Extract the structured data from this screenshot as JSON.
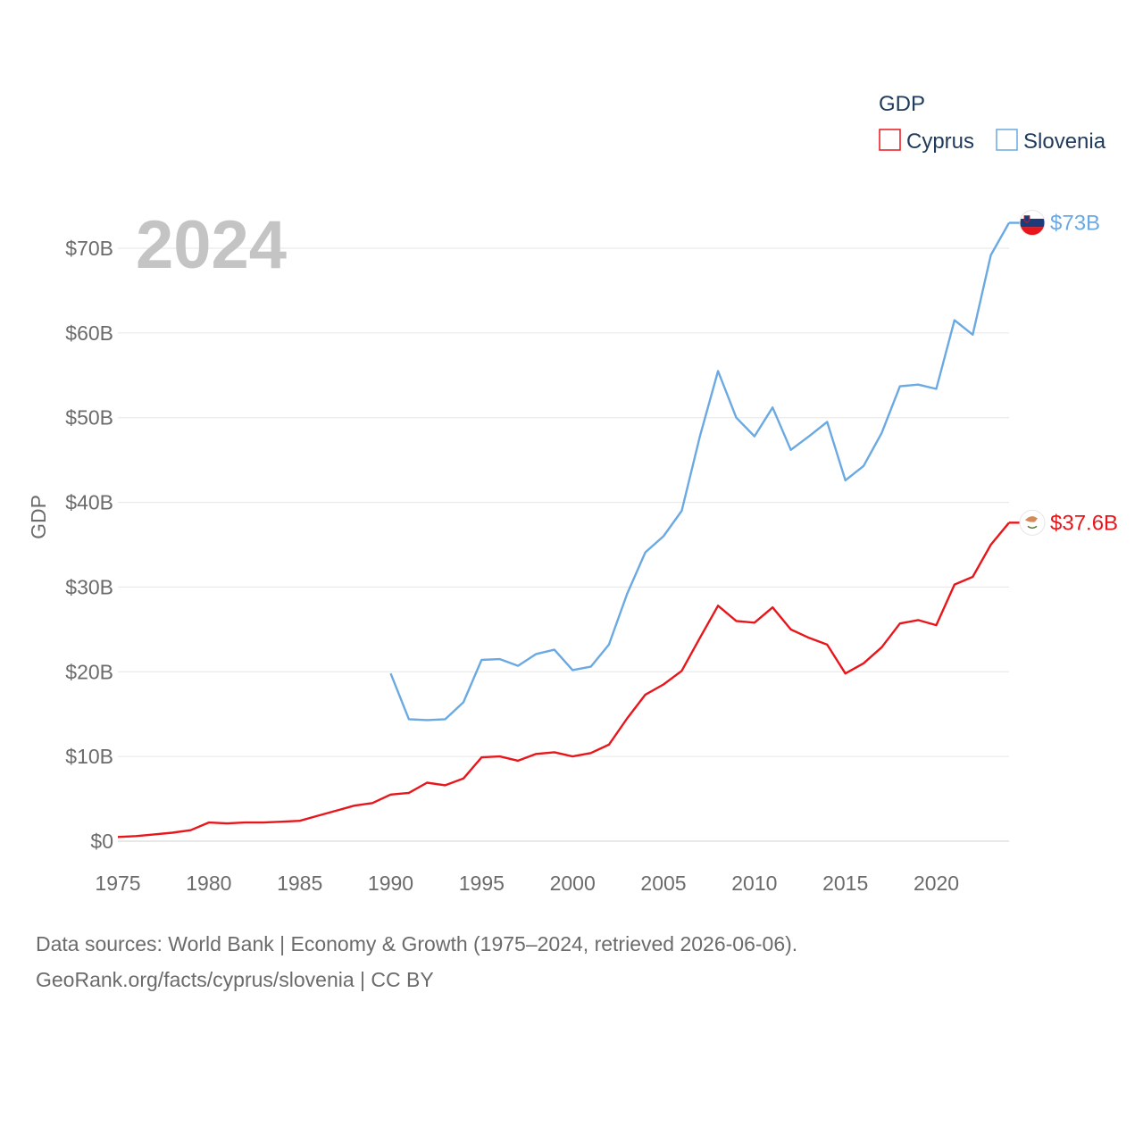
{
  "chart_data": {
    "type": "line",
    "title": "",
    "ylabel": "GDP",
    "xlabel": "",
    "year_label": "2024",
    "xlim": [
      1975,
      2024
    ],
    "ylim": [
      0,
      70
    ],
    "x_ticks": [
      1975,
      1980,
      1985,
      1990,
      1995,
      2000,
      2005,
      2010,
      2015,
      2020
    ],
    "x_tick_labels": [
      "1975",
      "1980",
      "1985",
      "1990",
      "1995",
      "2000",
      "2005",
      "2010",
      "2015",
      "2020"
    ],
    "y_ticks": [
      0,
      10,
      20,
      30,
      40,
      50,
      60,
      70
    ],
    "y_tick_labels": [
      "$0",
      "$10B",
      "$20B",
      "$30B",
      "$40B",
      "$50B",
      "$60B",
      "$70B"
    ],
    "legend": {
      "title": "GDP",
      "position": "top-right",
      "entries": [
        "Cyprus",
        "Slovenia"
      ]
    },
    "series": [
      {
        "name": "Cyprus",
        "color": "#e8161b",
        "end_label": "$37.6B",
        "flag": "cyprus-flag",
        "x": [
          1975,
          1976,
          1977,
          1978,
          1979,
          1980,
          1981,
          1982,
          1983,
          1984,
          1985,
          1986,
          1987,
          1988,
          1989,
          1990,
          1991,
          1992,
          1993,
          1994,
          1995,
          1996,
          1997,
          1998,
          1999,
          2000,
          2001,
          2002,
          2003,
          2004,
          2005,
          2006,
          2007,
          2008,
          2009,
          2010,
          2011,
          2012,
          2013,
          2014,
          2015,
          2016,
          2017,
          2018,
          2019,
          2020,
          2021,
          2022,
          2023,
          2024
        ],
        "values": [
          0.5,
          0.6,
          0.8,
          1.0,
          1.3,
          2.2,
          2.1,
          2.2,
          2.2,
          2.3,
          2.4,
          3.0,
          3.6,
          4.2,
          4.5,
          5.5,
          5.7,
          6.9,
          6.6,
          7.4,
          9.9,
          10.0,
          9.5,
          10.3,
          10.5,
          10.0,
          10.4,
          11.4,
          14.5,
          17.3,
          18.5,
          20.1,
          24.0,
          27.8,
          26.0,
          25.8,
          27.6,
          25.0,
          24.0,
          23.2,
          19.8,
          21.0,
          22.9,
          25.7,
          26.1,
          25.5,
          30.3,
          31.2,
          35.0,
          37.6
        ]
      },
      {
        "name": "Slovenia",
        "color": "#6aa9e2",
        "end_label": "$73B",
        "flag": "slovenia-flag",
        "x": [
          1990,
          1991,
          1992,
          1993,
          1994,
          1995,
          1996,
          1997,
          1998,
          1999,
          2000,
          2001,
          2002,
          2003,
          2004,
          2005,
          2006,
          2007,
          2008,
          2009,
          2010,
          2011,
          2012,
          2013,
          2014,
          2015,
          2016,
          2017,
          2018,
          2019,
          2020,
          2021,
          2022,
          2023,
          2024
        ],
        "values": [
          19.8,
          14.4,
          14.3,
          14.4,
          16.4,
          21.4,
          21.5,
          20.7,
          22.1,
          22.6,
          20.2,
          20.6,
          23.2,
          29.2,
          34.1,
          36.0,
          39.0,
          47.8,
          55.5,
          50.0,
          47.8,
          51.2,
          46.2,
          47.8,
          49.5,
          42.6,
          44.3,
          48.2,
          53.7,
          53.9,
          53.4,
          61.5,
          59.8,
          69.2,
          73.0
        ]
      }
    ]
  },
  "source": {
    "line1": "Data sources: World Bank | Economy & Growth (1975–2024, retrieved 2026-06-06).",
    "line2": "GeoRank.org/facts/cyprus/slovenia | CC BY"
  }
}
